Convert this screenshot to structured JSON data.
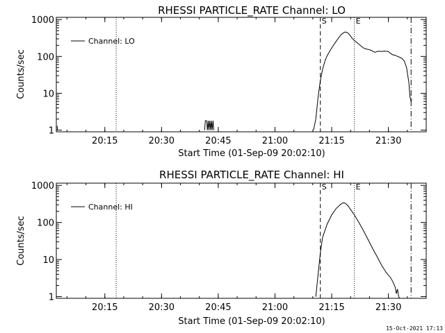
{
  "footer": {
    "timestamp": "15-Oct-2021 17:13"
  },
  "chart_data": [
    {
      "type": "line",
      "title": "RHESSI PARTICLE_RATE Channel: LO",
      "xlabel": "Start Time (01-Sep-09 20:02:10)",
      "ylabel": "Counts/sec",
      "yscale": "log",
      "ylim": [
        0.9,
        1150
      ],
      "xlim": [
        20.0361,
        21.6667
      ],
      "x_units": "hour of day (decimal), tick labels HH:MM",
      "xticks": [
        {
          "label": "20:15",
          "x": 20.25
        },
        {
          "label": "20:30",
          "x": 20.5
        },
        {
          "label": "20:45",
          "x": 20.75
        },
        {
          "label": "21:00",
          "x": 21.0
        },
        {
          "label": "21:15",
          "x": 21.25
        },
        {
          "label": "21:30",
          "x": 21.5
        }
      ],
      "yticks": [
        {
          "label": "1",
          "y": 1
        },
        {
          "label": "10",
          "y": 10
        },
        {
          "label": "100",
          "y": 100
        },
        {
          "label": "1000",
          "y": 1000
        }
      ],
      "legend": {
        "label": "Channel: LO",
        "placement": "top-left"
      },
      "markers": [
        {
          "label": "",
          "x": 20.3,
          "style": "dotted"
        },
        {
          "label": "S",
          "x": 21.2,
          "style": "dashed"
        },
        {
          "label": "E",
          "x": 21.35,
          "style": "dotted"
        },
        {
          "label": "",
          "x": 21.6,
          "style": "dashdot"
        }
      ],
      "series": [
        {
          "name": "Channel: LO",
          "segments": [
            [
              [
                20.04,
                1.3
              ],
              [
                20.041,
                1.0
              ]
            ],
            [
              [
                20.69,
                1.0
              ],
              [
                20.693,
                1.8
              ],
              [
                20.699,
                1.8
              ],
              [
                20.702,
                1.0
              ],
              [
                20.706,
                1.8
              ],
              [
                20.709,
                1.0
              ],
              [
                20.713,
                1.8
              ],
              [
                20.716,
                1.0
              ],
              [
                20.72,
                1.8
              ],
              [
                20.723,
                1.0
              ],
              [
                20.727,
                1.8
              ],
              [
                20.73,
                1.0
              ]
            ],
            [
              [
                21.17,
                1.0
              ],
              [
                21.18,
                2
              ],
              [
                21.19,
                8
              ],
              [
                21.2,
                22
              ],
              [
                21.21,
                45
              ],
              [
                21.22,
                75
              ],
              [
                21.23,
                105
              ],
              [
                21.25,
                170
              ],
              [
                21.27,
                260
              ],
              [
                21.29,
                380
              ],
              [
                21.3,
                430
              ],
              [
                21.31,
                460
              ],
              [
                21.32,
                440
              ],
              [
                21.33,
                380
              ],
              [
                21.34,
                310
              ],
              [
                21.35,
                270
              ],
              [
                21.36,
                240
              ],
              [
                21.37,
                215
              ],
              [
                21.38,
                190
              ],
              [
                21.39,
                170
              ],
              [
                21.4,
                160
              ],
              [
                21.41,
                155
              ],
              [
                21.42,
                150
              ],
              [
                21.43,
                140
              ],
              [
                21.44,
                130
              ],
              [
                21.45,
                135
              ],
              [
                21.46,
                140
              ],
              [
                21.47,
                135
              ],
              [
                21.48,
                140
              ],
              [
                21.49,
                138
              ],
              [
                21.5,
                135
              ],
              [
                21.51,
                120
              ],
              [
                21.52,
                110
              ],
              [
                21.53,
                108
              ],
              [
                21.54,
                100
              ],
              [
                21.55,
                95
              ],
              [
                21.56,
                88
              ],
              [
                21.57,
                75
              ],
              [
                21.58,
                50
              ],
              [
                21.59,
                20
              ],
              [
                21.595,
                8
              ],
              [
                21.6,
                6
              ],
              [
                21.603,
                7
              ]
            ]
          ]
        }
      ]
    },
    {
      "type": "line",
      "title": "RHESSI PARTICLE_RATE Channel: HI",
      "xlabel": "Start Time (01-Sep-09 20:02:10)",
      "ylabel": "Counts/sec",
      "yscale": "log",
      "ylim": [
        0.9,
        1150
      ],
      "xlim": [
        20.0361,
        21.6667
      ],
      "x_units": "hour of day (decimal), tick labels HH:MM",
      "xticks": [
        {
          "label": "20:15",
          "x": 20.25
        },
        {
          "label": "20:30",
          "x": 20.5
        },
        {
          "label": "20:45",
          "x": 20.75
        },
        {
          "label": "21:00",
          "x": 21.0
        },
        {
          "label": "21:15",
          "x": 21.25
        },
        {
          "label": "21:30",
          "x": 21.5
        }
      ],
      "yticks": [
        {
          "label": "1",
          "y": 1
        },
        {
          "label": "10",
          "y": 10
        },
        {
          "label": "100",
          "y": 100
        },
        {
          "label": "1000",
          "y": 1000
        }
      ],
      "legend": {
        "label": "Channel: HI",
        "placement": "top-left"
      },
      "markers": [
        {
          "label": "",
          "x": 20.3,
          "style": "dotted"
        },
        {
          "label": "S",
          "x": 21.2,
          "style": "dashed"
        },
        {
          "label": "E",
          "x": 21.35,
          "style": "dotted"
        },
        {
          "label": "",
          "x": 21.6,
          "style": "dashdot"
        }
      ],
      "series": [
        {
          "name": "Channel: HI",
          "segments": [
            [
              [
                21.18,
                1.0
              ],
              [
                21.19,
                4
              ],
              [
                21.2,
                15
              ],
              [
                21.21,
                40
              ],
              [
                21.23,
                90
              ],
              [
                21.25,
                160
              ],
              [
                21.27,
                240
              ],
              [
                21.29,
                310
              ],
              [
                21.3,
                340
              ],
              [
                21.31,
                330
              ],
              [
                21.32,
                290
              ],
              [
                21.33,
                240
              ],
              [
                21.35,
                160
              ],
              [
                21.37,
                100
              ],
              [
                21.39,
                60
              ],
              [
                21.41,
                35
              ],
              [
                21.43,
                20
              ],
              [
                21.45,
                12
              ],
              [
                21.47,
                7
              ],
              [
                21.49,
                4.5
              ],
              [
                21.5,
                3.8
              ],
              [
                21.51,
                3.2
              ],
              [
                21.52,
                2.5
              ],
              [
                21.53,
                1.8
              ],
              [
                21.535,
                1.2
              ],
              [
                21.54,
                1.6
              ],
              [
                21.545,
                1.0
              ],
              [
                21.55,
                0.9
              ]
            ]
          ]
        }
      ]
    }
  ]
}
